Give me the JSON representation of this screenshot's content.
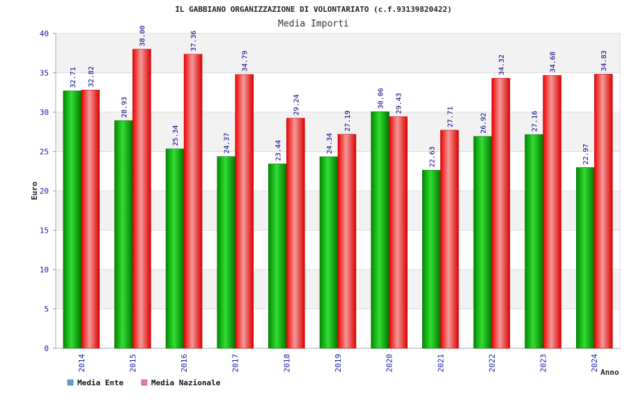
{
  "chart_data": {
    "type": "bar",
    "title": "IL GABBIANO ORGANIZZAZIONE DI VOLONTARIATO (c.f.93139820422)",
    "subtitle": "Media Importi",
    "xlabel": "Anno",
    "ylabel": "Euro",
    "ylim": [
      0,
      40
    ],
    "yticks": [
      0,
      5,
      10,
      15,
      20,
      25,
      30,
      35,
      40
    ],
    "grid": true,
    "legend_position": "bottom-left",
    "categories": [
      "2014",
      "2015",
      "2016",
      "2017",
      "2018",
      "2019",
      "2020",
      "2021",
      "2022",
      "2023",
      "2024"
    ],
    "series": [
      {
        "name": "Media Ente",
        "color": "#00aa00",
        "legend_color": "#5b9bd5",
        "values": [
          32.71,
          28.93,
          25.34,
          24.37,
          23.44,
          24.34,
          30.06,
          22.63,
          26.92,
          27.16,
          22.97
        ],
        "labels": [
          "32.71",
          "28.93",
          "25.34",
          "24.37",
          "23.44",
          "24.34",
          "30.06",
          "22.63",
          "26.92",
          "27.16",
          "22.97"
        ]
      },
      {
        "name": "Media Nazionale",
        "color": "#ee1111",
        "legend_color": "#e87ab0",
        "values": [
          32.82,
          38.0,
          37.36,
          34.79,
          29.24,
          27.19,
          29.43,
          27.71,
          34.32,
          34.68,
          34.83
        ],
        "labels": [
          "32.82",
          "38.00",
          "37.36",
          "34.79",
          "29.24",
          "27.19",
          "29.43",
          "27.71",
          "34.32",
          "34.68",
          "34.83"
        ]
      }
    ]
  }
}
